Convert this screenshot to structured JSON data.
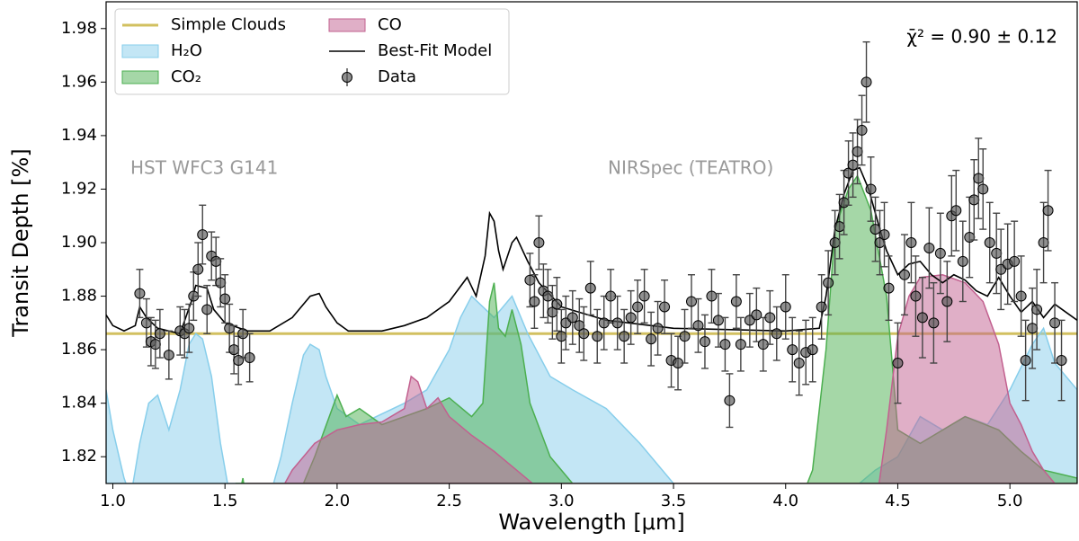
{
  "chart_data": {
    "type": "line",
    "xlabel": "Wavelength [μm]",
    "ylabel": "Transit Depth [%]",
    "annotations": [
      "HST WFC3 G141",
      "NIRSpec (TEATRO)",
      "χ̄² = 0.90 ± 0.12"
    ],
    "xlim": [
      0.97,
      5.3
    ],
    "ylim": [
      1.81,
      1.99
    ],
    "xticks": [
      {
        "value": 1,
        "label": "1.0"
      },
      {
        "value": 1.5,
        "label": "1.5"
      },
      {
        "value": 2,
        "label": "2.0"
      },
      {
        "value": 2.5,
        "label": "2.5"
      },
      {
        "value": 3,
        "label": "3.0"
      },
      {
        "value": 3.5,
        "label": "3.5"
      },
      {
        "value": 4,
        "label": "4.0"
      },
      {
        "value": 4.5,
        "label": "4.5"
      },
      {
        "value": 5,
        "label": "5.0"
      }
    ],
    "yticks": [
      {
        "value": 1.82,
        "label": "1.82"
      },
      {
        "value": 1.84,
        "label": "1.84"
      },
      {
        "value": 1.86,
        "label": "1.86"
      },
      {
        "value": 1.88,
        "label": "1.88"
      },
      {
        "value": 1.9,
        "label": "1.90"
      },
      {
        "value": 1.92,
        "label": "1.92"
      },
      {
        "value": 1.94,
        "label": "1.94"
      },
      {
        "value": 1.96,
        "label": "1.96"
      },
      {
        "value": 1.98,
        "label": "1.98"
      }
    ],
    "legend": "upper left",
    "series": [
      {
        "name": "Simple Clouds",
        "type": "hline",
        "color": "#d2c060",
        "value": 1.866
      },
      {
        "name": "H₂O",
        "type": "area",
        "color": "#87ceeb",
        "x": [
          0.97,
          1.0,
          1.05,
          1.08,
          1.12,
          1.16,
          1.2,
          1.25,
          1.3,
          1.34,
          1.37,
          1.4,
          1.44,
          1.48,
          1.52,
          1.6,
          1.7,
          1.75,
          1.8,
          1.85,
          1.88,
          1.92,
          1.95,
          2.0,
          2.1,
          2.2,
          2.3,
          2.4,
          2.5,
          2.55,
          2.6,
          2.65,
          2.7,
          2.78,
          2.85,
          2.95,
          3.05,
          3.2,
          3.35,
          3.5,
          3.55,
          4.2,
          4.3,
          4.4,
          4.5,
          4.6,
          4.7,
          4.8,
          4.9,
          5.0,
          5.1,
          5.15,
          5.2,
          5.25,
          5.3
        ],
        "values": [
          1.845,
          1.83,
          1.812,
          1.805,
          1.825,
          1.84,
          1.843,
          1.83,
          1.845,
          1.862,
          1.866,
          1.864,
          1.85,
          1.825,
          1.806,
          1.8,
          1.805,
          1.82,
          1.84,
          1.858,
          1.862,
          1.86,
          1.85,
          1.838,
          1.832,
          1.836,
          1.84,
          1.845,
          1.86,
          1.872,
          1.88,
          1.876,
          1.872,
          1.88,
          1.866,
          1.85,
          1.845,
          1.838,
          1.825,
          1.81,
          1.805,
          1.8,
          1.808,
          1.815,
          1.82,
          1.835,
          1.83,
          1.835,
          1.832,
          1.845,
          1.862,
          1.868,
          1.855,
          1.85,
          1.845
        ]
      },
      {
        "name": "CO₂",
        "type": "area",
        "color": "#4caf50",
        "x": [
          1.55,
          1.58,
          1.6,
          1.8,
          1.9,
          2.0,
          2.04,
          2.1,
          2.2,
          2.4,
          2.5,
          2.6,
          2.65,
          2.68,
          2.7,
          2.72,
          2.75,
          2.78,
          2.82,
          2.86,
          2.95,
          3.05,
          3.1,
          4.05,
          4.12,
          4.18,
          4.22,
          4.28,
          4.32,
          4.38,
          4.45,
          4.5,
          4.6,
          4.8,
          4.95,
          5.05,
          5.15,
          5.3
        ],
        "values": [
          1.8,
          1.812,
          1.8,
          1.8,
          1.82,
          1.843,
          1.835,
          1.838,
          1.832,
          1.838,
          1.842,
          1.835,
          1.84,
          1.878,
          1.885,
          1.868,
          1.865,
          1.875,
          1.862,
          1.84,
          1.82,
          1.81,
          1.8,
          1.8,
          1.815,
          1.86,
          1.905,
          1.92,
          1.925,
          1.912,
          1.88,
          1.83,
          1.825,
          1.835,
          1.83,
          1.822,
          1.815,
          1.812
        ]
      },
      {
        "name": "CO",
        "type": "area",
        "color": "#c2608f",
        "x": [
          1.6,
          1.7,
          1.8,
          1.9,
          2.0,
          2.1,
          2.2,
          2.3,
          2.33,
          2.36,
          2.4,
          2.45,
          2.5,
          2.6,
          2.7,
          2.8,
          2.9,
          3.0,
          4.4,
          4.45,
          4.5,
          4.55,
          4.6,
          4.7,
          4.8,
          4.88,
          4.95,
          5.0,
          5.05,
          5.1,
          5.15,
          5.2,
          5.3
        ],
        "values": [
          1.8,
          1.8,
          1.815,
          1.825,
          1.83,
          1.832,
          1.833,
          1.838,
          1.85,
          1.848,
          1.838,
          1.842,
          1.835,
          1.828,
          1.822,
          1.815,
          1.808,
          1.8,
          1.8,
          1.83,
          1.865,
          1.88,
          1.887,
          1.888,
          1.885,
          1.878,
          1.862,
          1.84,
          1.832,
          1.822,
          1.815,
          1.81,
          1.805
        ]
      },
      {
        "name": "Best-Fit Model",
        "type": "line",
        "color": "#000000",
        "x": [
          0.97,
          1.0,
          1.05,
          1.1,
          1.12,
          1.15,
          1.2,
          1.3,
          1.35,
          1.37,
          1.42,
          1.45,
          1.5,
          1.6,
          1.7,
          1.8,
          1.88,
          1.92,
          1.95,
          2.0,
          2.05,
          2.2,
          2.3,
          2.4,
          2.5,
          2.58,
          2.62,
          2.66,
          2.68,
          2.7,
          2.72,
          2.74,
          2.78,
          2.8,
          2.85,
          2.9,
          3.0,
          3.2,
          3.5,
          4.0,
          4.15,
          4.18,
          4.22,
          4.26,
          4.3,
          4.33,
          4.37,
          4.42,
          4.45,
          4.5,
          4.55,
          4.6,
          4.65,
          4.7,
          4.75,
          4.8,
          4.85,
          4.9,
          4.95,
          5.0,
          5.05,
          5.1,
          5.15,
          5.2,
          5.25,
          5.3
        ],
        "values": [
          1.873,
          1.869,
          1.867,
          1.869,
          1.876,
          1.872,
          1.868,
          1.866,
          1.878,
          1.884,
          1.883,
          1.875,
          1.87,
          1.867,
          1.867,
          1.872,
          1.88,
          1.881,
          1.876,
          1.87,
          1.867,
          1.867,
          1.869,
          1.872,
          1.878,
          1.887,
          1.88,
          1.895,
          1.911,
          1.908,
          1.897,
          1.89,
          1.9,
          1.902,
          1.893,
          1.885,
          1.876,
          1.871,
          1.868,
          1.867,
          1.868,
          1.88,
          1.905,
          1.918,
          1.927,
          1.928,
          1.92,
          1.905,
          1.897,
          1.888,
          1.892,
          1.893,
          1.888,
          1.885,
          1.888,
          1.886,
          1.882,
          1.88,
          1.887,
          1.88,
          1.874,
          1.878,
          1.872,
          1.877,
          1.874,
          1.871
        ]
      },
      {
        "name": "Data",
        "type": "scatter",
        "color": "#555555",
        "x": [
          1.12,
          1.15,
          1.17,
          1.19,
          1.21,
          1.25,
          1.3,
          1.32,
          1.34,
          1.36,
          1.38,
          1.4,
          1.42,
          1.44,
          1.46,
          1.48,
          1.5,
          1.52,
          1.54,
          1.56,
          1.58,
          1.61,
          2.86,
          2.88,
          2.9,
          2.92,
          2.94,
          2.96,
          2.98,
          3.0,
          3.02,
          3.05,
          3.08,
          3.1,
          3.13,
          3.16,
          3.19,
          3.22,
          3.25,
          3.28,
          3.31,
          3.34,
          3.37,
          3.4,
          3.43,
          3.46,
          3.49,
          3.52,
          3.55,
          3.58,
          3.61,
          3.64,
          3.67,
          3.7,
          3.73,
          3.75,
          3.78,
          3.8,
          3.84,
          3.87,
          3.9,
          3.93,
          3.96,
          4.0,
          4.03,
          4.06,
          4.09,
          4.12,
          4.16,
          4.19,
          4.22,
          4.24,
          4.26,
          4.28,
          4.3,
          4.32,
          4.34,
          4.36,
          4.38,
          4.4,
          4.42,
          4.44,
          4.46,
          4.5,
          4.53,
          4.56,
          4.58,
          4.61,
          4.64,
          4.66,
          4.69,
          4.72,
          4.74,
          4.76,
          4.79,
          4.82,
          4.84,
          4.86,
          4.88,
          4.91,
          4.94,
          4.96,
          4.99,
          5.02,
          5.05,
          5.07,
          5.1,
          5.12,
          5.15,
          5.17,
          5.2,
          5.23
        ],
        "values": [
          1.881,
          1.87,
          1.863,
          1.862,
          1.866,
          1.858,
          1.867,
          1.866,
          1.868,
          1.88,
          1.89,
          1.903,
          1.875,
          1.895,
          1.893,
          1.885,
          1.879,
          1.868,
          1.86,
          1.856,
          1.866,
          1.857,
          1.886,
          1.878,
          1.9,
          1.882,
          1.88,
          1.874,
          1.877,
          1.865,
          1.87,
          1.872,
          1.869,
          1.866,
          1.883,
          1.865,
          1.87,
          1.88,
          1.87,
          1.865,
          1.872,
          1.876,
          1.88,
          1.864,
          1.868,
          1.876,
          1.856,
          1.855,
          1.865,
          1.878,
          1.869,
          1.863,
          1.88,
          1.871,
          1.862,
          1.841,
          1.878,
          1.862,
          1.871,
          1.873,
          1.862,
          1.872,
          1.866,
          1.876,
          1.86,
          1.855,
          1.859,
          1.86,
          1.876,
          1.885,
          1.9,
          1.906,
          1.915,
          1.926,
          1.929,
          1.934,
          1.942,
          1.96,
          1.92,
          1.905,
          1.9,
          1.903,
          1.883,
          1.855,
          1.888,
          1.9,
          1.88,
          1.872,
          1.898,
          1.87,
          1.896,
          1.878,
          1.91,
          1.912,
          1.893,
          1.902,
          1.916,
          1.924,
          1.92,
          1.9,
          1.896,
          1.89,
          1.892,
          1.893,
          1.88,
          1.856,
          1.868,
          1.875,
          1.9,
          1.912,
          1.87,
          1.856
        ],
        "errors": [
          0.009,
          0.009,
          0.009,
          0.009,
          0.009,
          0.009,
          0.009,
          0.009,
          0.009,
          0.009,
          0.01,
          0.011,
          0.009,
          0.009,
          0.009,
          0.009,
          0.009,
          0.009,
          0.009,
          0.009,
          0.009,
          0.009,
          0.01,
          0.01,
          0.01,
          0.01,
          0.01,
          0.01,
          0.01,
          0.01,
          0.01,
          0.01,
          0.01,
          0.01,
          0.01,
          0.01,
          0.01,
          0.01,
          0.01,
          0.01,
          0.01,
          0.01,
          0.01,
          0.01,
          0.01,
          0.01,
          0.01,
          0.01,
          0.01,
          0.01,
          0.01,
          0.01,
          0.01,
          0.01,
          0.01,
          0.01,
          0.01,
          0.01,
          0.01,
          0.01,
          0.01,
          0.01,
          0.01,
          0.012,
          0.012,
          0.012,
          0.012,
          0.012,
          0.012,
          0.012,
          0.012,
          0.012,
          0.012,
          0.012,
          0.012,
          0.012,
          0.013,
          0.015,
          0.012,
          0.012,
          0.012,
          0.012,
          0.012,
          0.015,
          0.015,
          0.015,
          0.015,
          0.015,
          0.015,
          0.015,
          0.015,
          0.015,
          0.015,
          0.015,
          0.015,
          0.015,
          0.015,
          0.015,
          0.015,
          0.015,
          0.015,
          0.015,
          0.015,
          0.015,
          0.015,
          0.015,
          0.015,
          0.015,
          0.015,
          0.015,
          0.015,
          0.015
        ]
      }
    ]
  }
}
